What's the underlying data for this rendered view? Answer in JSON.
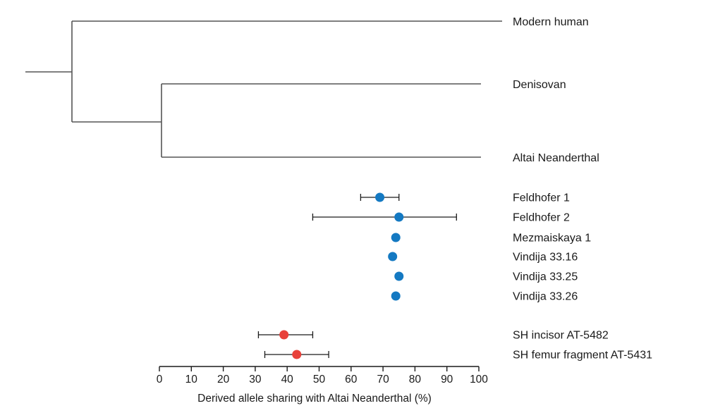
{
  "tree": {
    "leaves": [
      "Modern human",
      "Denisovan",
      "Altai Neanderthal"
    ]
  },
  "chart_data": {
    "type": "scatter",
    "xlabel": "Derived allele sharing with Altai Neanderthal (%)",
    "xlim": [
      0,
      100
    ],
    "xticks": [
      "0",
      "10",
      "20",
      "30",
      "40",
      "50",
      "60",
      "70",
      "80",
      "90",
      "100"
    ],
    "grid": false,
    "orientation": "horizontal-dot-with-error-bars",
    "series": [
      {
        "color": "#1479c2",
        "points": [
          {
            "label": "Feldhofer 1",
            "value": 69,
            "ci": [
              63,
              75
            ]
          },
          {
            "label": "Feldhofer 2",
            "value": 75,
            "ci": [
              48,
              93
            ]
          },
          {
            "label": "Mezmaiskaya 1",
            "value": 74,
            "ci": null
          },
          {
            "label": "Vindija 33.16",
            "value": 73,
            "ci": null
          },
          {
            "label": "Vindija 33.25",
            "value": 75,
            "ci": null
          },
          {
            "label": "Vindija 33.26",
            "value": 74,
            "ci": null
          }
        ]
      },
      {
        "color": "#e8413a",
        "points": [
          {
            "label": "SH incisor AT-5482",
            "value": 39,
            "ci": [
              31,
              48
            ]
          },
          {
            "label": "SH femur fragment AT-5431",
            "value": 43,
            "ci": [
              33,
              53
            ]
          }
        ]
      }
    ]
  }
}
